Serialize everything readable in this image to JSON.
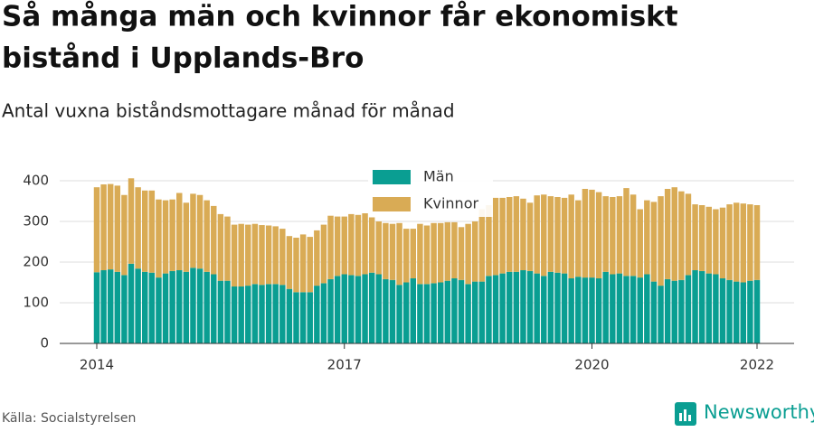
{
  "chart_data": {
    "type": "stacked-bar",
    "title_lines": [
      "Så många män och kvinnor får ekonomiskt",
      "bistånd i Upplands-Bro"
    ],
    "subtitle": "Antal vuxna biståndsmottagare månad för månad",
    "source": "Källa: Socialstyrelsen",
    "brand": "Newsworthy",
    "categories": [
      "2014",
      null,
      null,
      null,
      null,
      null,
      null,
      null,
      null,
      null,
      null,
      null,
      null,
      null,
      null,
      null,
      null,
      null,
      null,
      null,
      null,
      null,
      null,
      null,
      null,
      null,
      null,
      null,
      null,
      null,
      null,
      null,
      null,
      null,
      null,
      null,
      "2017",
      null,
      null,
      null,
      null,
      null,
      null,
      null,
      null,
      null,
      null,
      null,
      null,
      null,
      null,
      null,
      null,
      null,
      null,
      null,
      null,
      null,
      null,
      null,
      null,
      null,
      null,
      null,
      null,
      null,
      null,
      null,
      null,
      null,
      null,
      null,
      "2020",
      null,
      null,
      null,
      null,
      null,
      null,
      null,
      null,
      null,
      null,
      null,
      null,
      null,
      null,
      null,
      null,
      null,
      null,
      null,
      null,
      null,
      null,
      null,
      "2022"
    ],
    "series": [
      {
        "name": "Män",
        "color": "#0a9e92",
        "values": [
          175,
          180,
          182,
          176,
          168,
          196,
          184,
          176,
          174,
          162,
          172,
          178,
          180,
          176,
          186,
          184,
          176,
          170,
          154,
          154,
          140,
          140,
          142,
          146,
          144,
          146,
          146,
          144,
          134,
          126,
          126,
          126,
          142,
          148,
          158,
          166,
          170,
          168,
          166,
          170,
          174,
          170,
          158,
          156,
          144,
          150,
          160,
          146,
          146,
          148,
          150,
          154,
          160,
          156,
          146,
          152,
          152,
          166,
          168,
          172,
          176,
          176,
          180,
          178,
          172,
          166,
          176,
          174,
          172,
          160,
          164,
          162,
          162,
          160,
          176,
          170,
          172,
          166,
          166,
          162,
          170,
          152,
          142,
          158,
          154,
          156,
          168,
          180,
          178,
          172,
          170,
          160,
          156,
          152,
          150,
          154,
          156
        ]
      },
      {
        "name": "Kvinnor",
        "color": "#d9ab55",
        "values": [
          209,
          211,
          210,
          212,
          197,
          210,
          200,
          200,
          202,
          192,
          180,
          176,
          190,
          170,
          182,
          181,
          176,
          168,
          164,
          158,
          152,
          154,
          150,
          148,
          147,
          144,
          142,
          138,
          130,
          134,
          142,
          136,
          136,
          144,
          156,
          146,
          142,
          150,
          150,
          150,
          136,
          130,
          138,
          138,
          152,
          132,
          122,
          148,
          144,
          148,
          146,
          144,
          138,
          130,
          148,
          148,
          178,
          174,
          190,
          186,
          184,
          186,
          176,
          168,
          192,
          200,
          186,
          186,
          186,
          206,
          188,
          218,
          216,
          212,
          186,
          190,
          190,
          216,
          200,
          168,
          182,
          196,
          220,
          222,
          230,
          218,
          200,
          162,
          162,
          164,
          160,
          174,
          186,
          194,
          194,
          188,
          184
        ]
      }
    ],
    "ylim": [
      0,
      440
    ],
    "yticks": [
      0,
      100,
      200,
      300,
      400
    ],
    "grid": true
  }
}
